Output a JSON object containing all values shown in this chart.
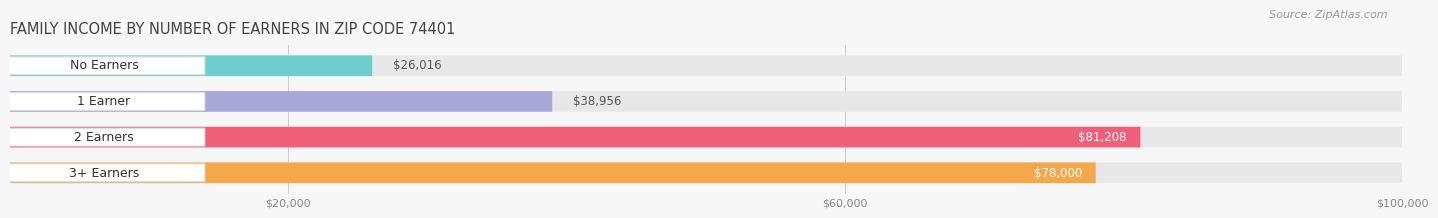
{
  "title": "FAMILY INCOME BY NUMBER OF EARNERS IN ZIP CODE 74401",
  "source": "Source: ZipAtlas.com",
  "categories": [
    "No Earners",
    "1 Earner",
    "2 Earners",
    "3+ Earners"
  ],
  "values": [
    26016,
    38956,
    81208,
    78000
  ],
  "bar_colors": [
    "#6dcece",
    "#a8a8d8",
    "#f0607a",
    "#f5a84a"
  ],
  "label_values": [
    "$26,016",
    "$38,956",
    "$81,208",
    "$78,000"
  ],
  "xmin": 0,
  "xmax": 100000,
  "xticks": [
    20000,
    60000,
    100000
  ],
  "xtick_labels": [
    "$20,000",
    "$60,000",
    "$100,000"
  ],
  "title_fontsize": 10.5,
  "source_fontsize": 8,
  "bar_label_fontsize": 8.5,
  "cat_label_fontsize": 9,
  "background_color": "#f7f7f7",
  "bar_bg_color": "#e8e8e8",
  "label_inside_threshold": 55000
}
